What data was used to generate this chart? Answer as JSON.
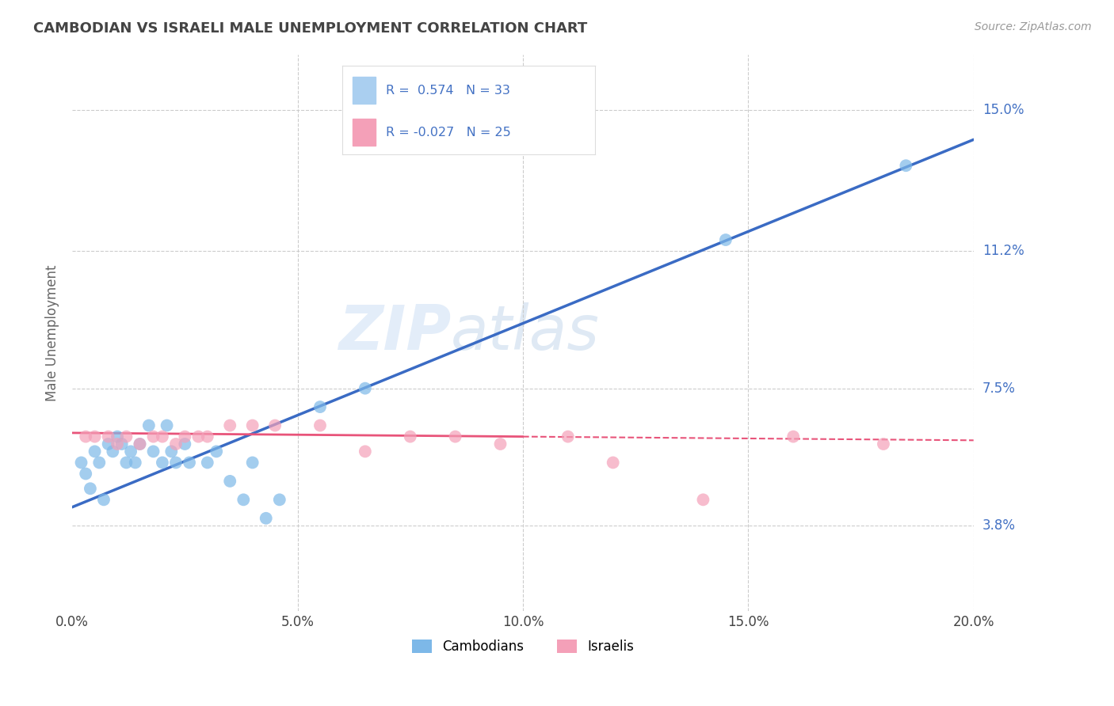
{
  "title": "CAMBODIAN VS ISRAELI MALE UNEMPLOYMENT CORRELATION CHART",
  "source": "Source: ZipAtlas.com",
  "ylabel": "Male Unemployment",
  "xmin": 0.0,
  "xmax": 20.0,
  "ymin": 1.5,
  "ymax": 16.5,
  "yticks": [
    3.8,
    7.5,
    11.2,
    15.0
  ],
  "xticks": [
    0.0,
    5.0,
    10.0,
    15.0,
    20.0
  ],
  "xtick_labels": [
    "0.0%",
    "5.0%",
    "10.0%",
    "15.0%",
    "20.0%"
  ],
  "ytick_labels": [
    "3.8%",
    "7.5%",
    "11.2%",
    "15.0%"
  ],
  "cambodian_color": "#7db8e8",
  "israeli_color": "#f4a0b8",
  "regression_cambodian_color": "#3a6bc4",
  "regression_israeli_color": "#e8547a",
  "legend_box_color": "#aacff0",
  "legend_pink_color": "#f4a0b8",
  "title_color": "#444444",
  "axis_color": "#4472c4",
  "legend_text_color": "#4472c4",
  "label_color": "#666666",
  "source_color": "#999999",
  "grid_color": "#cccccc",
  "legend_label1": "Cambodians",
  "legend_label2": "Israelis",
  "cam_r": 0.574,
  "cam_n": 33,
  "isr_r": -0.027,
  "isr_n": 25,
  "cambodian_x": [
    0.2,
    0.3,
    0.4,
    0.5,
    0.6,
    0.7,
    0.8,
    0.9,
    1.0,
    1.1,
    1.2,
    1.3,
    1.4,
    1.5,
    1.7,
    1.8,
    2.0,
    2.1,
    2.2,
    2.3,
    2.5,
    2.6,
    3.0,
    3.2,
    3.5,
    3.8,
    4.0,
    4.3,
    4.6,
    5.5,
    6.5,
    14.5,
    18.5
  ],
  "cambodian_y": [
    5.5,
    5.2,
    4.8,
    5.8,
    5.5,
    4.5,
    6.0,
    5.8,
    6.2,
    6.0,
    5.5,
    5.8,
    5.5,
    6.0,
    6.5,
    5.8,
    5.5,
    6.5,
    5.8,
    5.5,
    6.0,
    5.5,
    5.5,
    5.8,
    5.0,
    4.5,
    5.5,
    4.0,
    4.5,
    7.0,
    7.5,
    11.5,
    13.5
  ],
  "israeli_x": [
    0.3,
    0.5,
    0.8,
    1.0,
    1.2,
    1.5,
    1.8,
    2.0,
    2.3,
    2.5,
    2.8,
    3.0,
    3.5,
    4.0,
    4.5,
    5.5,
    6.5,
    7.5,
    8.5,
    9.5,
    11.0,
    12.0,
    14.0,
    16.0,
    18.0
  ],
  "israeli_y": [
    6.2,
    6.2,
    6.2,
    6.0,
    6.2,
    6.0,
    6.2,
    6.2,
    6.0,
    6.2,
    6.2,
    6.2,
    6.5,
    6.5,
    6.5,
    6.5,
    5.8,
    6.2,
    6.2,
    6.0,
    6.2,
    5.5,
    4.5,
    6.2,
    6.0
  ],
  "cam_line_x0": 0.0,
  "cam_line_y0": 4.3,
  "cam_line_x1": 20.0,
  "cam_line_y1": 14.2,
  "isr_line_x0": 0.0,
  "isr_line_y0": 6.3,
  "isr_line_x1": 10.0,
  "isr_line_y1": 6.2,
  "isr_dash_x0": 10.0,
  "isr_dash_y0": 6.2,
  "isr_dash_x1": 20.0,
  "isr_dash_y1": 6.1
}
